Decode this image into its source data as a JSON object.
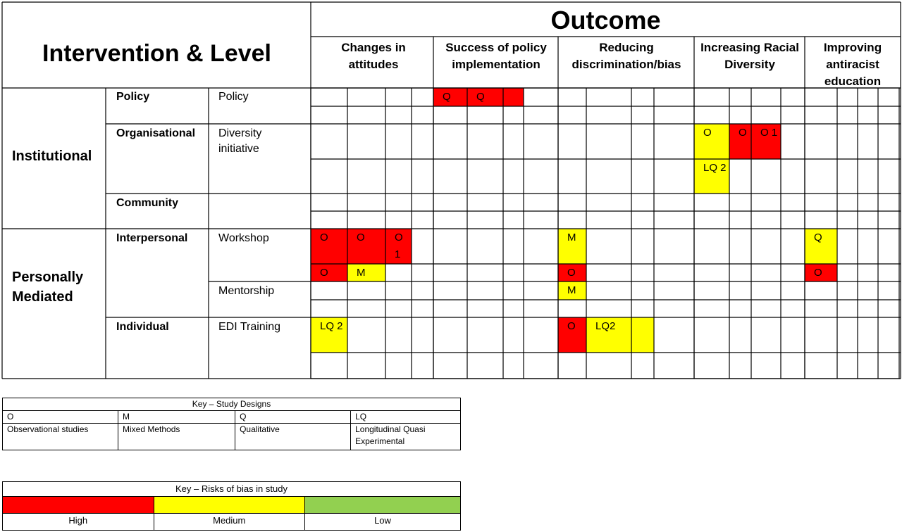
{
  "header": {
    "left_title": "Intervention & Level",
    "outcome_title": "Outcome"
  },
  "outcomes": [
    {
      "label": "Changes in attitudes"
    },
    {
      "label": "Success of policy implementation"
    },
    {
      "label": "Reducing discrimination/bias"
    },
    {
      "label": "Increasing Racial Diversity"
    },
    {
      "label": "Improving antiracist education"
    }
  ],
  "levels": [
    {
      "label": "Institutional"
    },
    {
      "label": "Personally Mediated"
    }
  ],
  "sublevels": [
    {
      "label": "Policy"
    },
    {
      "label": "Organisational"
    },
    {
      "label": "Community"
    },
    {
      "label": "Interpersonal"
    },
    {
      "label": "Individual"
    }
  ],
  "interventions": [
    {
      "label": "Policy"
    },
    {
      "label": "Diversity initiative"
    },
    {
      "label": "Workshop"
    },
    {
      "label": "Mentorship"
    },
    {
      "label": "EDI Training"
    }
  ],
  "colors": {
    "high": "#ff0000",
    "medium": "#ffff00",
    "low": "#92d050"
  },
  "studies": [
    {
      "text": "Q",
      "risk": "high"
    },
    {
      "text": "Q",
      "risk": "high"
    },
    {
      "text": "O",
      "risk": "medium"
    },
    {
      "text": "O",
      "risk": "high"
    },
    {
      "text": "O 1",
      "risk": "high"
    },
    {
      "text": "LQ 2",
      "risk": "medium"
    },
    {
      "text": "O",
      "risk": "high"
    },
    {
      "text": "O",
      "risk": "high"
    },
    {
      "text": "O 1",
      "risk": "high"
    },
    {
      "text": "M",
      "risk": "medium"
    },
    {
      "text": "Q",
      "risk": "medium"
    },
    {
      "text": "O",
      "risk": "high"
    },
    {
      "text": "M",
      "risk": "medium"
    },
    {
      "text": "O",
      "risk": "high"
    },
    {
      "text": "O",
      "risk": "high"
    },
    {
      "text": "M",
      "risk": "medium"
    },
    {
      "text": "LQ 2",
      "risk": "medium"
    },
    {
      "text": "O",
      "risk": "high"
    },
    {
      "text": "LQ2",
      "risk": "medium"
    }
  ],
  "key_designs": {
    "title": "Key – Study Designs",
    "items": [
      {
        "code": "O",
        "label": "Observational studies"
      },
      {
        "code": "M",
        "label": "Mixed Methods"
      },
      {
        "code": "Q",
        "label": "Qualitative"
      },
      {
        "code": "LQ",
        "label": "Longitudinal Quasi Experimental"
      }
    ]
  },
  "key_bias": {
    "title": "Key – Risks of bias in study",
    "items": [
      {
        "label": "High",
        "color": "#ff0000"
      },
      {
        "label": "Medium",
        "color": "#ffff00"
      },
      {
        "label": "Low",
        "color": "#92d050"
      }
    ]
  }
}
